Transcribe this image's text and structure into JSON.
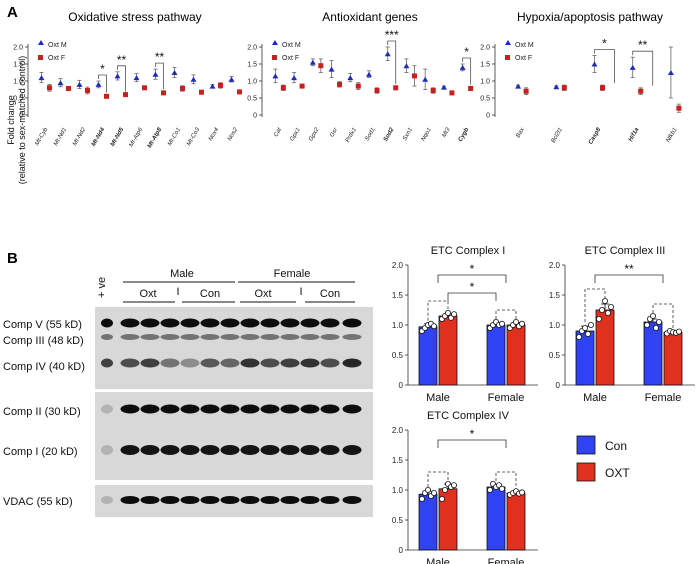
{
  "panel_a_letter": "A",
  "panel_b_letter": "B",
  "y_axis_label_line1": "Fold change",
  "y_axis_label_line2": "(relative to sex-matched control)",
  "colors": {
    "male": "#1c2bb8",
    "female": "#c8201e",
    "con": "#2f43f2",
    "oxt": "#e0301e"
  },
  "chart_data": [
    {
      "type": "scatter",
      "title": "Oxidative stress pathway",
      "ylim": [
        0,
        2
      ],
      "yticks": [
        "0",
        "0.5",
        "1.0",
        "1.5",
        "2.0"
      ],
      "legend": [
        "Oxt M",
        "Oxt F"
      ],
      "categories": [
        "Mt-Cyb",
        "Mt-Nd1",
        "Mt-Nd2",
        "Mt-Nd4",
        "Mt-Nd5",
        "Mt-Atp6",
        "Mt-Atp8",
        "Mt-Co1",
        "Mt-Co3",
        "Nox4",
        "Nos2"
      ],
      "bold": [
        false,
        false,
        false,
        true,
        true,
        false,
        true,
        false,
        false,
        false,
        false
      ],
      "series": [
        {
          "name": "Oxt M",
          "values": [
            1.1,
            0.95,
            0.9,
            0.9,
            1.15,
            1.1,
            1.2,
            1.25,
            1.05,
            0.85,
            1.05
          ],
          "errors": [
            0.15,
            0.12,
            0.12,
            0.1,
            0.12,
            0.12,
            0.15,
            0.15,
            0.13,
            0.05,
            0.08
          ]
        },
        {
          "name": "Oxt F",
          "values": [
            0.8,
            0.78,
            0.72,
            0.55,
            0.6,
            0.8,
            0.65,
            0.78,
            0.67,
            0.87,
            0.68
          ],
          "errors": [
            0.1,
            0.05,
            0.1,
            0.05,
            0.03,
            0.05,
            0.05,
            0.08,
            0.05,
            0.08,
            0.05
          ]
        }
      ],
      "significance": [
        {
          "a": 3,
          "b": 3,
          "label": "*"
        },
        {
          "a": 4,
          "b": 4,
          "label": "**"
        },
        {
          "a": 6,
          "b": 6,
          "label": "**"
        }
      ]
    },
    {
      "type": "scatter",
      "title": "Antioxidant genes",
      "ylim": [
        0,
        2
      ],
      "yticks": [
        "0",
        "0.5",
        "1.0",
        "1.5",
        "2.0"
      ],
      "legend": [
        "Oxt M",
        "Oxt F"
      ],
      "categories": [
        "Cat",
        "Gpx1",
        "Gpx2",
        "Gsr",
        "Prdx1",
        "Sod1",
        "Sod2",
        "Sxn1",
        "Nqo1",
        "Mt3",
        "Cygb"
      ],
      "bold": [
        false,
        false,
        false,
        false,
        false,
        false,
        true,
        false,
        false,
        false,
        true
      ],
      "series": [
        {
          "name": "Oxt M",
          "values": [
            1.15,
            1.1,
            1.55,
            1.35,
            1.1,
            1.2,
            1.8,
            1.45,
            1.05,
            0.82,
            1.4
          ],
          "errors": [
            0.2,
            0.15,
            0.1,
            0.25,
            0.12,
            0.1,
            0.2,
            0.2,
            0.3,
            0.03,
            0.1
          ]
        },
        {
          "name": "Oxt F",
          "values": [
            0.8,
            0.85,
            1.45,
            0.9,
            0.85,
            0.72,
            0.8,
            1.15,
            0.72,
            0.65,
            0.78
          ],
          "errors": [
            0.08,
            0.05,
            0.2,
            0.08,
            0.1,
            0.08,
            0.05,
            0.3,
            0.08,
            0.05,
            0.05
          ]
        }
      ],
      "significance": [
        {
          "a": 6,
          "b": 6,
          "label": "***"
        },
        {
          "a": 10,
          "b": 10,
          "label": "*"
        }
      ]
    },
    {
      "type": "scatter",
      "title": "Hypoxia/apoptosis pathway",
      "ylim": [
        0,
        2
      ],
      "yticks": [
        "0",
        "0.5",
        "1.0",
        "1.5",
        "2.0"
      ],
      "legend": [
        "Oxt M",
        "Oxt F"
      ],
      "categories": [
        "Bax",
        "Bcl2l1",
        "Casp8",
        "Hif1a",
        "Nfkb1"
      ],
      "bold": [
        false,
        false,
        true,
        true,
        false
      ],
      "series": [
        {
          "name": "Oxt M",
          "values": [
            0.85,
            0.83,
            1.5,
            1.4,
            1.25
          ],
          "errors": [
            0.03,
            0.03,
            0.25,
            0.3,
            0.75
          ]
        },
        {
          "name": "Oxt F",
          "values": [
            0.7,
            0.8,
            0.8,
            0.7,
            0.2
          ],
          "errors": [
            0.1,
            0.08,
            0.08,
            0.1,
            0.12
          ]
        }
      ],
      "significance": [
        {
          "a": 2,
          "b": 2,
          "label": "*"
        },
        {
          "a": 3,
          "b": 3,
          "label": "**"
        }
      ]
    },
    {
      "type": "bar",
      "title": "ETC Complex I",
      "ylim": [
        0,
        2
      ],
      "yticks": [
        "0",
        "0.5",
        "1.0",
        "1.5",
        "2.0"
      ],
      "categories": [
        "Male",
        "Female"
      ],
      "series": [
        {
          "name": "Con",
          "values": [
            0.97,
            1.0
          ],
          "errors": [
            0.05,
            0.03
          ],
          "points": [
            [
              0.9,
              0.95,
              1.0,
              1.02,
              0.98
            ],
            [
              0.95,
              1.0,
              1.05,
              1.0,
              1.02
            ]
          ]
        },
        {
          "name": "OXT",
          "values": [
            1.15,
            1.0
          ],
          "errors": [
            0.04,
            0.04
          ],
          "points": [
            [
              1.1,
              1.15,
              1.2,
              1.12,
              1.18
            ],
            [
              0.95,
              1.0,
              1.05,
              0.98,
              1.02
            ]
          ]
        }
      ],
      "significance": [
        "*",
        "*"
      ]
    },
    {
      "type": "bar",
      "title": "ETC Complex III",
      "ylim": [
        0,
        2
      ],
      "yticks": [
        "0",
        "0.5",
        "1.0",
        "1.5",
        "2.0"
      ],
      "categories": [
        "Male",
        "Female"
      ],
      "series": [
        {
          "name": "Con",
          "values": [
            0.9,
            1.05
          ],
          "errors": [
            0.08,
            0.05
          ],
          "points": [
            [
              0.8,
              0.9,
              0.95,
              0.85,
              1.0
            ],
            [
              1.0,
              1.1,
              1.15,
              0.95,
              1.05
            ]
          ]
        },
        {
          "name": "OXT",
          "values": [
            1.25,
            0.88
          ],
          "errors": [
            0.1,
            0.02
          ],
          "points": [
            [
              1.1,
              1.25,
              1.4,
              1.2,
              1.3
            ],
            [
              0.86,
              0.9,
              0.88,
              0.87,
              0.89
            ]
          ]
        }
      ],
      "significance": [
        "**"
      ]
    },
    {
      "type": "bar",
      "title": "ETC Complex IV",
      "ylim": [
        0,
        2
      ],
      "yticks": [
        "0",
        "0.5",
        "1.0",
        "1.5",
        "2.0"
      ],
      "categories": [
        "Male",
        "Female"
      ],
      "series": [
        {
          "name": "Con",
          "values": [
            0.93,
            1.05
          ],
          "errors": [
            0.05,
            0.04
          ],
          "points": [
            [
              0.85,
              0.95,
              1.0,
              0.9,
              0.95
            ],
            [
              1.0,
              1.1,
              1.05,
              1.08,
              1.02
            ]
          ]
        },
        {
          "name": "OXT",
          "values": [
            1.02,
            0.95
          ],
          "errors": [
            0.08,
            0.03
          ],
          "points": [
            [
              0.85,
              1.0,
              1.1,
              1.05,
              1.08
            ],
            [
              0.92,
              0.95,
              0.98,
              0.94,
              0.96
            ]
          ]
        }
      ],
      "significance": [
        "*"
      ]
    }
  ],
  "western_blot": {
    "positive_label": "+ ve",
    "groups": [
      "Male",
      "Female"
    ],
    "subgroups": [
      "Oxt",
      "Con"
    ],
    "divider": "I",
    "bands": [
      "Comp V (55 kD)",
      "Comp III (48 kD)",
      "Comp IV (40 kD)",
      "Comp II (30 kD)",
      "Comp I (20 kD)",
      "VDAC (55 kD)"
    ]
  },
  "bar_legend": [
    "Con",
    "OXT"
  ]
}
